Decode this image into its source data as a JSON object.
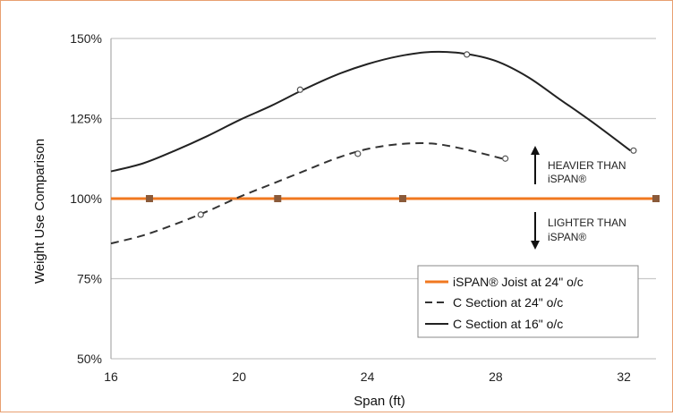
{
  "chart_data": {
    "type": "line",
    "xlabel": "Span (ft)",
    "ylabel": "Weight Use Comparison",
    "xlim": [
      16,
      33
    ],
    "ylim": [
      50,
      150
    ],
    "x_ticks": [
      16,
      20,
      24,
      28,
      32
    ],
    "x_tick_labels": [
      "16",
      "20",
      "24",
      "28",
      "32"
    ],
    "y_ticks": [
      50,
      75,
      100,
      125,
      150
    ],
    "y_tick_labels": [
      "50%",
      "75%",
      "100%",
      "125%",
      "150%"
    ],
    "grid": "horizontal",
    "legend_position": "bottom-right",
    "series": [
      {
        "name": "iSPAN® Joist  at 24\" o/c",
        "style": "solid",
        "color": "#f07820",
        "x": [
          16,
          33
        ],
        "y": [
          100,
          100
        ],
        "markers": {
          "shape": "square",
          "x": [
            17.2,
            21.2,
            25.1,
            33
          ],
          "y": [
            100,
            100,
            100,
            100
          ]
        }
      },
      {
        "name": "C Section at 24\" o/c",
        "style": "dashed",
        "color": "#333333",
        "x": [
          16,
          17,
          18,
          19,
          20,
          21,
          22,
          23,
          24,
          25,
          26,
          27,
          28.2
        ],
        "y": [
          86,
          88.5,
          92,
          96,
          100.5,
          104.5,
          108.5,
          112.5,
          115.5,
          117,
          117.2,
          115.5,
          112.5
        ],
        "markers": {
          "shape": "circle",
          "x": [
            18.8,
            23.7,
            28.3
          ],
          "y": [
            95,
            114,
            112.5
          ]
        }
      },
      {
        "name": "C Section at 16\" o/c",
        "style": "solid",
        "color": "#222222",
        "x": [
          16,
          17,
          18,
          19,
          20,
          21,
          22,
          23,
          24,
          25,
          26,
          27,
          28,
          29,
          30,
          31,
          32.2
        ],
        "y": [
          108.5,
          111,
          115,
          119.5,
          124.5,
          129,
          134,
          138.5,
          142,
          144.5,
          145.8,
          145.3,
          143,
          138,
          131,
          124,
          115
        ],
        "markers": {
          "shape": "circle",
          "x": [
            21.9,
            27.1,
            32.3
          ],
          "y": [
            134,
            145,
            115
          ]
        }
      }
    ],
    "annotations": [
      {
        "arrow": "up",
        "lines": [
          "HEAVIER THAN",
          "iSPAN®"
        ]
      },
      {
        "arrow": "down",
        "lines": [
          "LIGHTER THAN",
          "iSPAN®"
        ]
      }
    ]
  }
}
